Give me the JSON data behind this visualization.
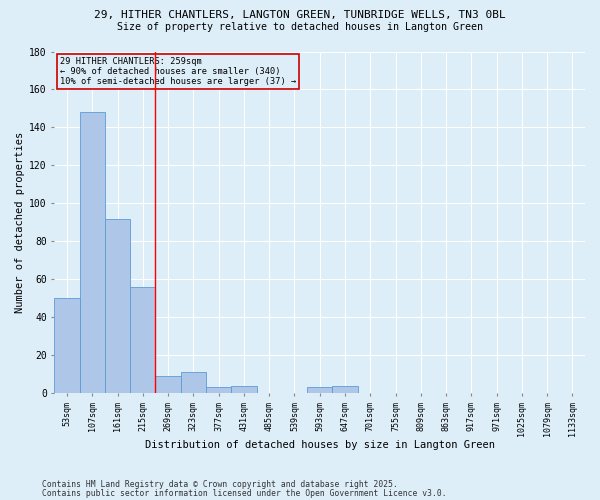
{
  "title_line1": "29, HITHER CHANTLERS, LANGTON GREEN, TUNBRIDGE WELLS, TN3 0BL",
  "title_line2": "Size of property relative to detached houses in Langton Green",
  "categories": [
    "53sqm",
    "107sqm",
    "161sqm",
    "215sqm",
    "269sqm",
    "323sqm",
    "377sqm",
    "431sqm",
    "485sqm",
    "539sqm",
    "593sqm",
    "647sqm",
    "701sqm",
    "755sqm",
    "809sqm",
    "863sqm",
    "917sqm",
    "971sqm",
    "1025sqm",
    "1079sqm",
    "1133sqm"
  ],
  "values": [
    50,
    148,
    92,
    56,
    9,
    11,
    3,
    4,
    0,
    0,
    3,
    4,
    0,
    0,
    0,
    0,
    0,
    0,
    0,
    0,
    0
  ],
  "bar_color": "#aec6e8",
  "bar_edge_color": "#5b9bd5",
  "red_line_index": 3.5,
  "annotation_text": "29 HITHER CHANTLERS: 259sqm\n← 90% of detached houses are smaller (340)\n10% of semi-detached houses are larger (37) →",
  "xlabel": "Distribution of detached houses by size in Langton Green",
  "ylabel": "Number of detached properties",
  "ylim": [
    0,
    180
  ],
  "yticks": [
    0,
    20,
    40,
    60,
    80,
    100,
    120,
    140,
    160,
    180
  ],
  "footer_line1": "Contains HM Land Registry data © Crown copyright and database right 2025.",
  "footer_line2": "Contains public sector information licensed under the Open Government Licence v3.0.",
  "bg_color": "#ddeef9",
  "grid_color": "#ffffff",
  "annotation_box_facecolor": "#ddeef9",
  "annotation_box_edge_color": "#cc0000"
}
